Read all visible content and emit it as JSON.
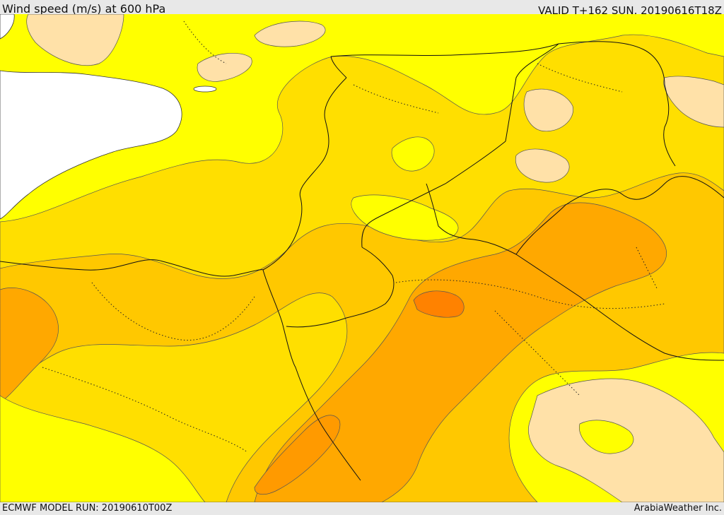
{
  "header": {
    "title": "Wind speed (m/s) at 600 hPa",
    "valid": "VALID T+162 SUN. 20190616T18Z"
  },
  "footer": {
    "model_run": "ECMWF MODEL RUN: 20190610T00Z",
    "credit": "ArabiaWeather Inc."
  },
  "colors": {
    "very_low": "#ffe1a8",
    "low": "#ffff00",
    "moderate": "#ffdf00",
    "medium": "#ffc800",
    "high": "#ffa800",
    "very_high": "#ff8200",
    "sea": "#ffffff",
    "background": "#e8e8e8"
  }
}
